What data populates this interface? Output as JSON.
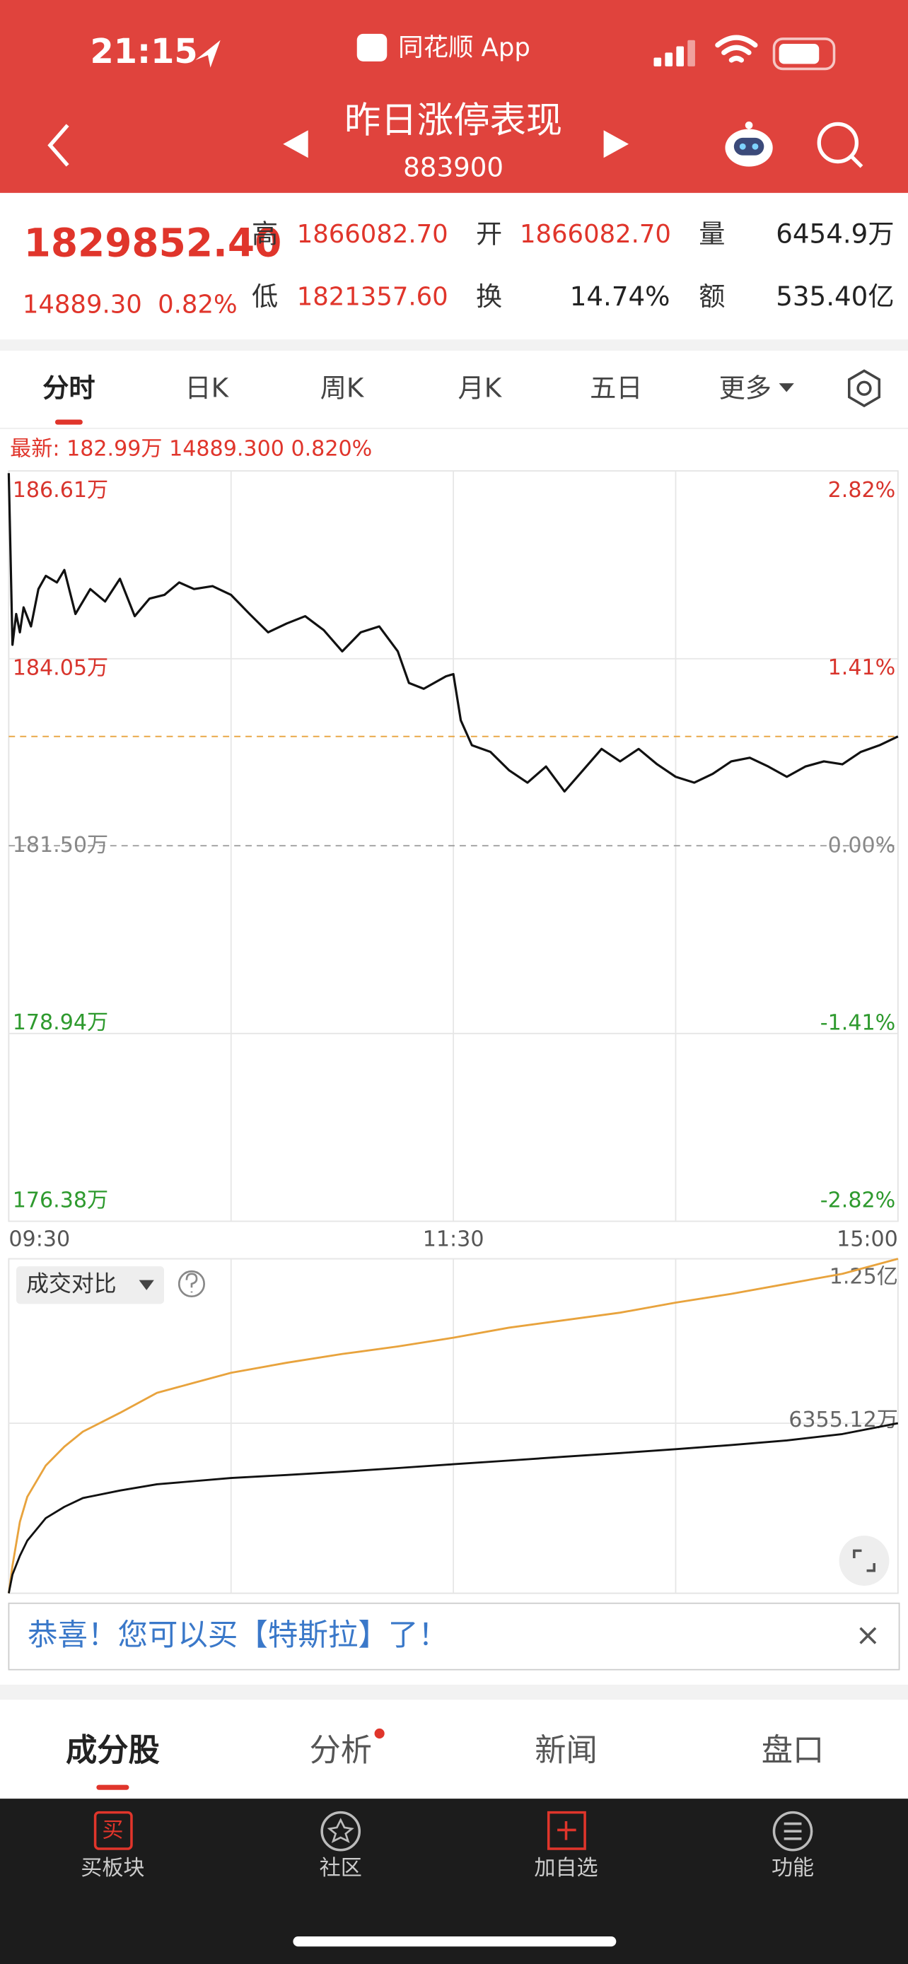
{
  "status_bar": {
    "time": "21:15",
    "app": "同花顺 App"
  },
  "header": {
    "title": "昨日涨停表现",
    "code": "883900"
  },
  "quote": {
    "price": "1829852.40",
    "change": "14889.30",
    "change_pct": "0.82%",
    "high_label": "高",
    "high": "1866082.70",
    "low_label": "低",
    "low": "1821357.60",
    "open_label": "开",
    "open": "1866082.70",
    "turnover_label": "换",
    "turnover": "14.74%",
    "volume_label": "量",
    "volume": "6454.9万",
    "amount_label": "额",
    "amount": "535.40亿"
  },
  "tabs": [
    "分时",
    "日K",
    "周K",
    "月K",
    "五日",
    "更多"
  ],
  "latest": "最新: 182.99万  14889.300  0.820%",
  "chart_data": [
    {
      "type": "line",
      "x": [
        0,
        1,
        2,
        3,
        4,
        6,
        8,
        10,
        13,
        15,
        18,
        22,
        26,
        30,
        34,
        38,
        42,
        46,
        50,
        55,
        60,
        65,
        70,
        75,
        80,
        85,
        90,
        95,
        100,
        105,
        108,
        112,
        118,
        120,
        122,
        125,
        130,
        135,
        140,
        145,
        150,
        155,
        160,
        165,
        170,
        175,
        180,
        185,
        190,
        195,
        200,
        205,
        210,
        215,
        220,
        225,
        230,
        235,
        240
      ],
      "series": [
        {
          "color": "#111111",
          "values": [
            186.58,
            184.24,
            184.66,
            184.41,
            184.75,
            184.49,
            185.0,
            185.18,
            185.09,
            185.26,
            184.66,
            185.0,
            184.83,
            185.14,
            184.63,
            184.87,
            184.92,
            185.09,
            185.0,
            185.04,
            184.92,
            184.66,
            184.41,
            184.53,
            184.63,
            184.44,
            184.15,
            184.41,
            184.49,
            184.15,
            183.72,
            183.64,
            183.81,
            183.84,
            183.21,
            182.87,
            182.78,
            182.53,
            182.36,
            182.58,
            182.24,
            182.53,
            182.82,
            182.65,
            182.82,
            182.61,
            182.44,
            182.36,
            182.48,
            182.65,
            182.7,
            182.58,
            182.44,
            182.58,
            182.65,
            182.61,
            182.78,
            182.87,
            182.99
          ]
        }
      ],
      "xlim": [
        0,
        240
      ],
      "xticks": [
        {
          "value": 0,
          "label": "09:30"
        },
        {
          "value": 120,
          "label": "11:30"
        },
        {
          "value": 240,
          "label": "15:00"
        }
      ],
      "ylim": [
        176.38,
        186.61
      ],
      "yticks": [
        {
          "value": 186.61,
          "label": "186.61万"
        },
        {
          "value": 184.05,
          "label": "184.05万"
        },
        {
          "value": 181.5,
          "label": "181.50万"
        },
        {
          "value": 178.94,
          "label": "178.94万"
        },
        {
          "value": 176.38,
          "label": "176.38万"
        }
      ],
      "y2lim": [
        -2.82,
        2.82
      ],
      "y2ticks": [
        {
          "value": 2.82,
          "label": "2.82%"
        },
        {
          "value": 1.41,
          "label": "1.41%"
        },
        {
          "value": 0,
          "label": "0.00%"
        },
        {
          "value": -1.41,
          "label": "-1.41%"
        },
        {
          "value": -2.82,
          "label": "-2.82%"
        }
      ],
      "grid": true
    },
    {
      "type": "line",
      "title": "成交对比",
      "x": [
        0,
        1,
        3,
        5,
        10,
        15,
        20,
        30,
        40,
        50,
        60,
        75,
        90,
        105,
        120,
        135,
        150,
        165,
        180,
        195,
        210,
        225,
        240
      ],
      "series": [
        {
          "color": "#e8a33d",
          "values": [
            0,
            1030,
            2669,
            3605,
            4776,
            5478,
            6040,
            6742,
            7491,
            7866,
            8240,
            8615,
            8943,
            9224,
            9551,
            9926,
            10207,
            10488,
            10862,
            11190,
            11565,
            11939,
            12500
          ]
        },
        {
          "color": "#111111",
          "values": [
            0,
            700,
            1400,
            1966,
            2809,
            3230,
            3558,
            3839,
            4073,
            4190,
            4307,
            4420,
            4542,
            4680,
            4822,
            4960,
            5103,
            5240,
            5384,
            5540,
            5712,
            5950,
            6355.12
          ]
        }
      ],
      "xlim": [
        0,
        240
      ],
      "ylim": [
        0,
        12500
      ],
      "yticks": [
        {
          "value": 12500,
          "label": "1.25亿"
        },
        {
          "value": 6355.12,
          "label": "6355.12万"
        }
      ],
      "grid": true
    }
  ],
  "banner": {
    "text": "恭喜！您可以买【特斯拉】了！",
    "close": "×"
  },
  "bottom_tabs": [
    "成分股",
    "分析",
    "新闻",
    "盘口"
  ],
  "nav": [
    {
      "icon": "买",
      "label": "买板块"
    },
    {
      "label": "社区"
    },
    {
      "label": "加自选"
    },
    {
      "label": "功能"
    }
  ]
}
